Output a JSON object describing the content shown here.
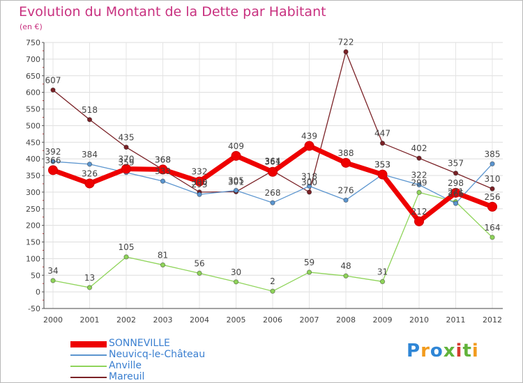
{
  "header": {
    "title": "Evolution du Montant de la Dette par Habitant",
    "unit": "(en €)"
  },
  "logo": {
    "text": "Proxiti",
    "colors": [
      "#2f86d6",
      "#f29b1d",
      "#2f86d6",
      "#62b33b",
      "#d63b2f",
      "#62b33b",
      "#f29b1d"
    ]
  },
  "chart_data": {
    "type": "line",
    "title": "Evolution du Montant de la Dette par Habitant",
    "ylabel": "(en €)",
    "x": [
      "2000",
      "2001",
      "2002",
      "2003",
      "2004",
      "2005",
      "2006",
      "2007",
      "2008",
      "2009",
      "2010",
      "2011",
      "2012"
    ],
    "ylim": [
      -50,
      750
    ],
    "yticks": [
      -50,
      0,
      50,
      100,
      150,
      200,
      250,
      300,
      350,
      400,
      450,
      500,
      550,
      600,
      650,
      700,
      750
    ],
    "grid": true,
    "legend_position": "bottom-left",
    "series": [
      {
        "name": "Mareuil",
        "color": "#7a2126",
        "values": [
          607,
          518,
          435,
          368,
          300,
          301,
          364,
          300,
          722,
          447,
          402,
          357,
          310
        ]
      },
      {
        "name": "Anville",
        "color": "#8fd45a",
        "values": [
          34,
          13,
          105,
          81,
          56,
          30,
          2,
          59,
          48,
          31,
          299,
          271,
          164
        ]
      },
      {
        "name": "Neuvicq-le-Château",
        "color": "#5b95cf",
        "values": [
          392,
          384,
          359,
          333,
          293,
          305,
          268,
          318,
          276,
          353,
          322,
          266,
          385
        ]
      },
      {
        "name": "SONNEVILLE",
        "color": "#ee0000",
        "values": [
          366,
          326,
          370,
          368,
          332,
          409,
          361,
          439,
          388,
          353,
          212,
          298,
          256
        ]
      }
    ],
    "legend_order": [
      "SONNEVILLE",
      "Neuvicq-le-Château",
      "Anville",
      "Mareuil"
    ]
  }
}
